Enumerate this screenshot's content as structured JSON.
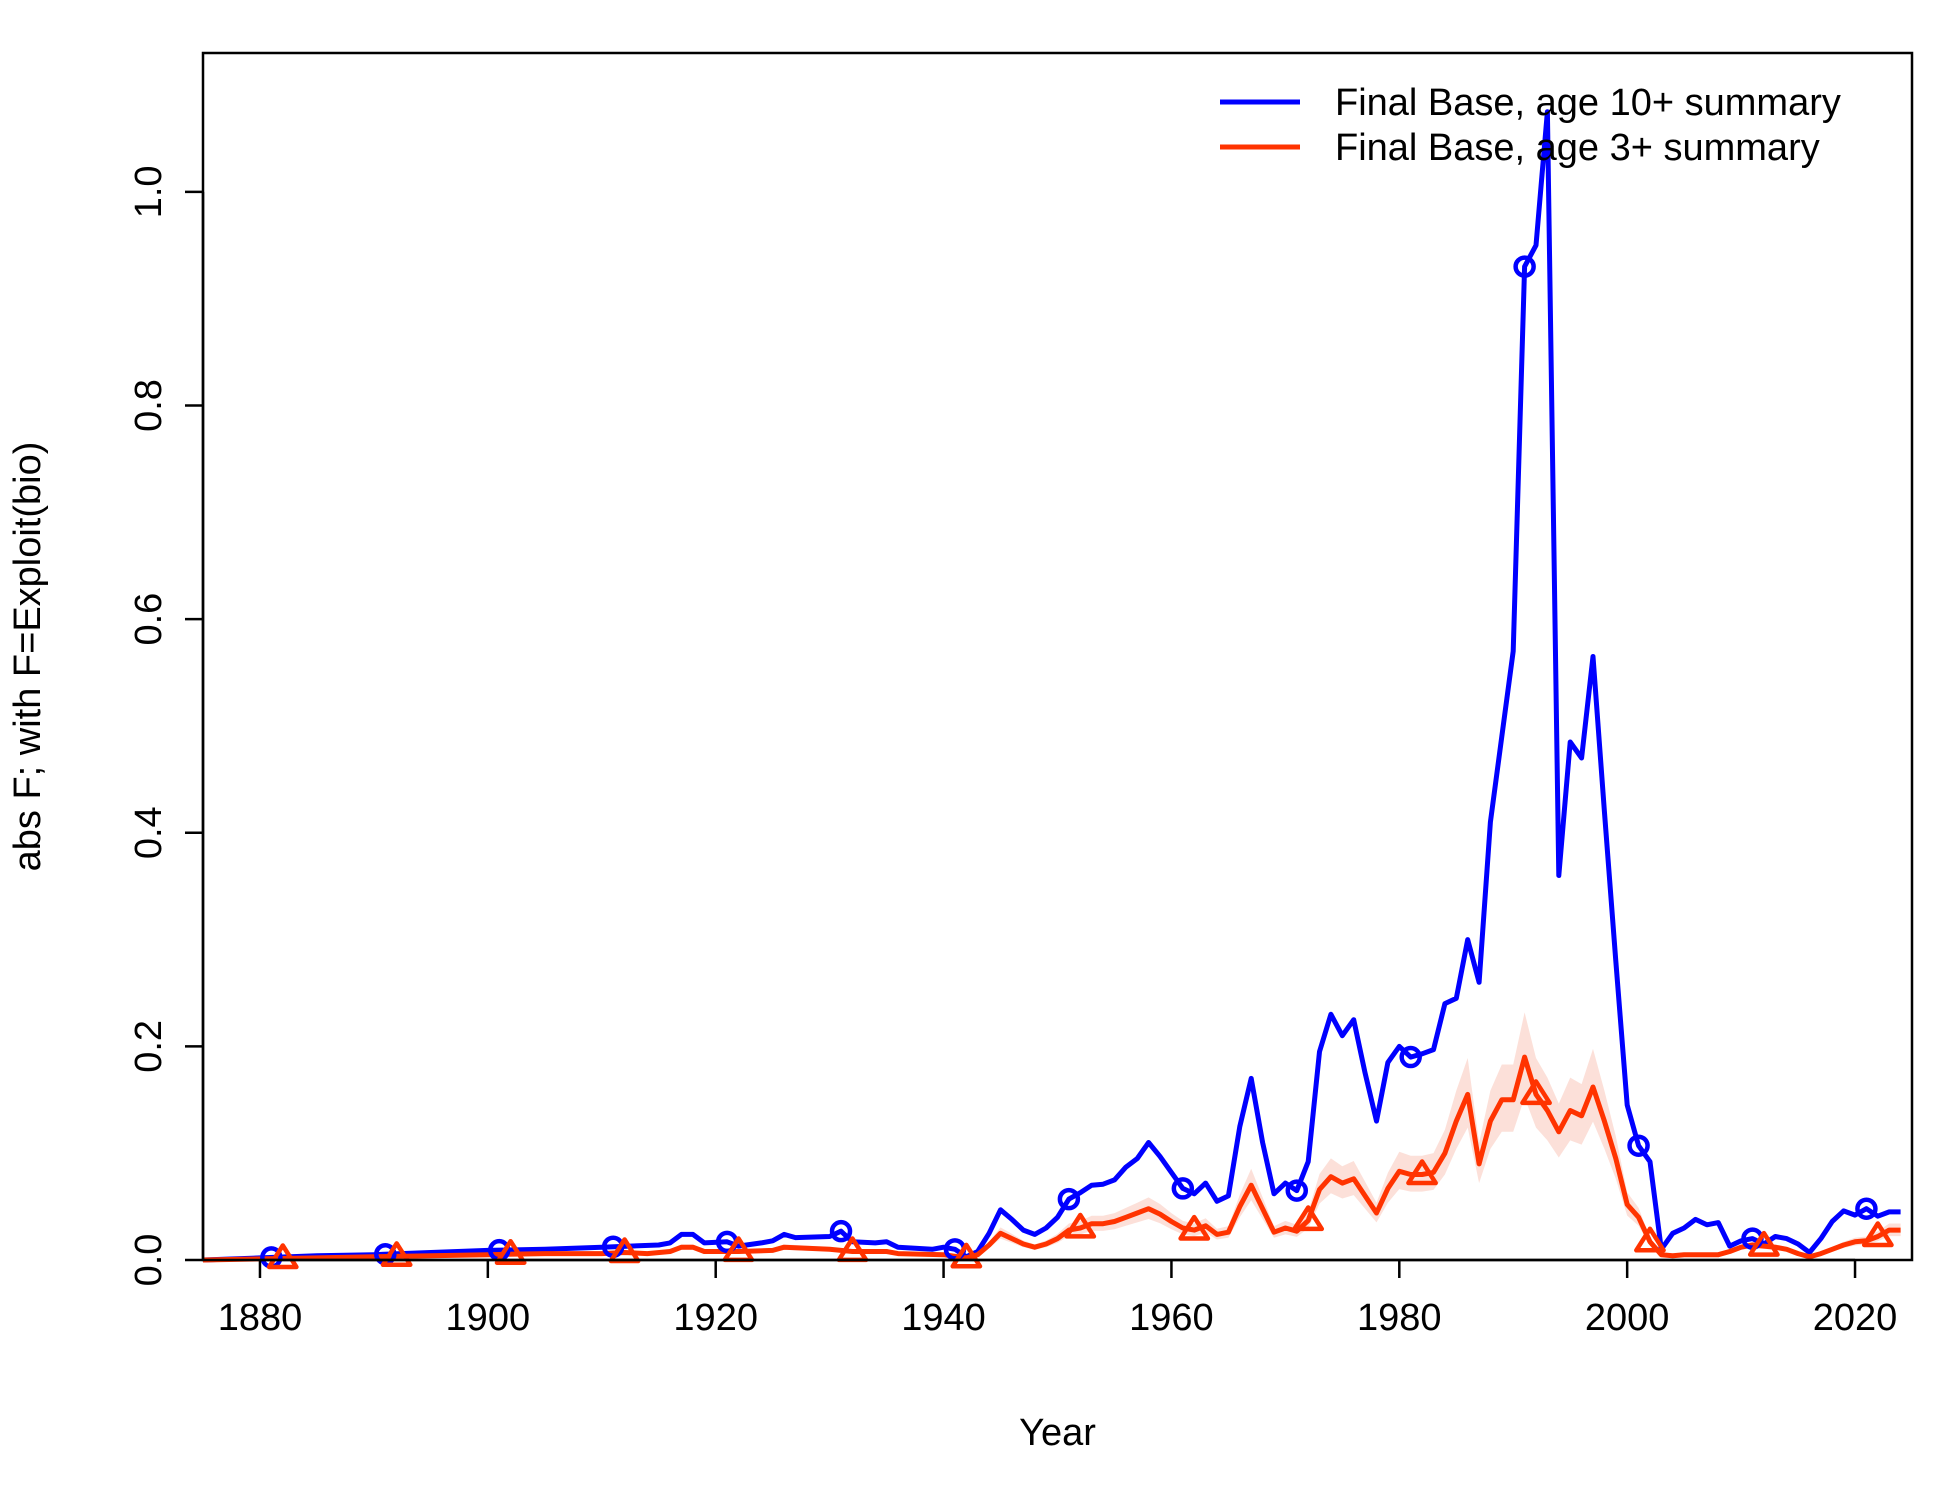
{
  "chart_data": {
    "type": "line",
    "xlabel": "Year",
    "ylabel": "abs F; with F=Exploit(bio)",
    "xlim": [
      1875,
      2025
    ],
    "ylim": [
      0,
      1.13
    ],
    "x_ticks": [
      1880,
      1900,
      1920,
      1940,
      1960,
      1980,
      2000,
      2020
    ],
    "y_ticks": [
      "0.0",
      "0.2",
      "0.4",
      "0.6",
      "0.8",
      "1.0"
    ],
    "legend": {
      "placement": "top-right",
      "entries": [
        "Final Base, age 10+ summary",
        "Final Base, age 3+ summary"
      ]
    },
    "colors": {
      "series1": "#0000ff",
      "series2": "#ff3300",
      "band": "#fbd5cc"
    },
    "series": [
      {
        "name": "Final Base, age 10+ summary",
        "marker": "circle",
        "marker_years": [
          1881,
          1891,
          1901,
          1911,
          1921,
          1931,
          1941,
          1951,
          1961,
          1971,
          1981,
          1991,
          2001,
          2011,
          2021
        ],
        "points": [
          [
            1875,
            0.0
          ],
          [
            1880,
            0.002
          ],
          [
            1885,
            0.004
          ],
          [
            1890,
            0.005
          ],
          [
            1895,
            0.007
          ],
          [
            1900,
            0.009
          ],
          [
            1905,
            0.01
          ],
          [
            1910,
            0.012
          ],
          [
            1915,
            0.014
          ],
          [
            1916,
            0.016
          ],
          [
            1917,
            0.024
          ],
          [
            1918,
            0.024
          ],
          [
            1919,
            0.016
          ],
          [
            1921,
            0.017
          ],
          [
            1922,
            0.013
          ],
          [
            1924,
            0.016
          ],
          [
            1925,
            0.018
          ],
          [
            1926,
            0.024
          ],
          [
            1927,
            0.021
          ],
          [
            1930,
            0.022
          ],
          [
            1931,
            0.027
          ],
          [
            1932,
            0.017
          ],
          [
            1934,
            0.016
          ],
          [
            1935,
            0.017
          ],
          [
            1936,
            0.012
          ],
          [
            1939,
            0.01
          ],
          [
            1940,
            0.012
          ],
          [
            1941,
            0.01
          ],
          [
            1942,
            0.003
          ],
          [
            1943,
            0.008
          ],
          [
            1944,
            0.025
          ],
          [
            1945,
            0.047
          ],
          [
            1946,
            0.038
          ],
          [
            1947,
            0.028
          ],
          [
            1948,
            0.024
          ],
          [
            1949,
            0.03
          ],
          [
            1950,
            0.04
          ],
          [
            1951,
            0.057
          ],
          [
            1952,
            0.063
          ],
          [
            1953,
            0.07
          ],
          [
            1954,
            0.071
          ],
          [
            1955,
            0.075
          ],
          [
            1956,
            0.087
          ],
          [
            1957,
            0.095
          ],
          [
            1958,
            0.11
          ],
          [
            1959,
            0.097
          ],
          [
            1960,
            0.082
          ],
          [
            1961,
            0.067
          ],
          [
            1962,
            0.062
          ],
          [
            1963,
            0.072
          ],
          [
            1964,
            0.055
          ],
          [
            1965,
            0.06
          ],
          [
            1966,
            0.125
          ],
          [
            1967,
            0.17
          ],
          [
            1968,
            0.11
          ],
          [
            1969,
            0.062
          ],
          [
            1970,
            0.072
          ],
          [
            1971,
            0.065
          ],
          [
            1972,
            0.092
          ],
          [
            1973,
            0.195
          ],
          [
            1974,
            0.23
          ],
          [
            1975,
            0.21
          ],
          [
            1976,
            0.225
          ],
          [
            1977,
            0.175
          ],
          [
            1978,
            0.13
          ],
          [
            1979,
            0.185
          ],
          [
            1980,
            0.2
          ],
          [
            1981,
            0.19
          ],
          [
            1982,
            0.193
          ],
          [
            1983,
            0.197
          ],
          [
            1984,
            0.24
          ],
          [
            1985,
            0.245
          ],
          [
            1986,
            0.3
          ],
          [
            1987,
            0.26
          ],
          [
            1988,
            0.41
          ],
          [
            1989,
            0.49
          ],
          [
            1990,
            0.57
          ],
          [
            1991,
            0.93
          ],
          [
            1992,
            0.95
          ],
          [
            1993,
            1.075
          ],
          [
            1994,
            0.36
          ],
          [
            1995,
            0.485
          ],
          [
            1996,
            0.47
          ],
          [
            1997,
            0.565
          ],
          [
            1998,
            0.42
          ],
          [
            1999,
            0.28
          ],
          [
            2000,
            0.145
          ],
          [
            2001,
            0.107
          ],
          [
            2002,
            0.092
          ],
          [
            2003,
            0.01
          ],
          [
            2004,
            0.025
          ],
          [
            2005,
            0.03
          ],
          [
            2006,
            0.038
          ],
          [
            2007,
            0.033
          ],
          [
            2008,
            0.035
          ],
          [
            2009,
            0.013
          ],
          [
            2010,
            0.018
          ],
          [
            2011,
            0.02
          ],
          [
            2012,
            0.015
          ],
          [
            2013,
            0.022
          ],
          [
            2014,
            0.02
          ],
          [
            2015,
            0.015
          ],
          [
            2016,
            0.007
          ],
          [
            2017,
            0.02
          ],
          [
            2018,
            0.036
          ],
          [
            2019,
            0.046
          ],
          [
            2020,
            0.042
          ],
          [
            2021,
            0.048
          ],
          [
            2022,
            0.041
          ],
          [
            2023,
            0.045
          ],
          [
            2024,
            0.045
          ]
        ]
      },
      {
        "name": "Final Base, age 3+ summary",
        "marker": "triangle",
        "marker_years": [
          1882,
          1892,
          1902,
          1912,
          1922,
          1932,
          1942,
          1952,
          1962,
          1972,
          1982,
          1992,
          2002,
          2012,
          2022
        ],
        "points": [
          [
            1875,
            0.0
          ],
          [
            1880,
            0.001
          ],
          [
            1885,
            0.002
          ],
          [
            1890,
            0.003
          ],
          [
            1895,
            0.004
          ],
          [
            1900,
            0.005
          ],
          [
            1905,
            0.006
          ],
          [
            1910,
            0.006
          ],
          [
            1912,
            0.007
          ],
          [
            1914,
            0.006
          ],
          [
            1916,
            0.008
          ],
          [
            1917,
            0.012
          ],
          [
            1918,
            0.012
          ],
          [
            1919,
            0.008
          ],
          [
            1922,
            0.008
          ],
          [
            1925,
            0.009
          ],
          [
            1926,
            0.012
          ],
          [
            1930,
            0.01
          ],
          [
            1932,
            0.008
          ],
          [
            1935,
            0.008
          ],
          [
            1936,
            0.006
          ],
          [
            1940,
            0.005
          ],
          [
            1942,
            0.002
          ],
          [
            1943,
            0.005
          ],
          [
            1944,
            0.014
          ],
          [
            1945,
            0.025
          ],
          [
            1946,
            0.02
          ],
          [
            1947,
            0.015
          ],
          [
            1948,
            0.012
          ],
          [
            1949,
            0.015
          ],
          [
            1950,
            0.02
          ],
          [
            1951,
            0.028
          ],
          [
            1952,
            0.03
          ],
          [
            1953,
            0.034
          ],
          [
            1954,
            0.034
          ],
          [
            1955,
            0.036
          ],
          [
            1956,
            0.04
          ],
          [
            1957,
            0.044
          ],
          [
            1958,
            0.048
          ],
          [
            1959,
            0.043
          ],
          [
            1960,
            0.036
          ],
          [
            1961,
            0.03
          ],
          [
            1962,
            0.028
          ],
          [
            1963,
            0.032
          ],
          [
            1964,
            0.024
          ],
          [
            1965,
            0.026
          ],
          [
            1966,
            0.05
          ],
          [
            1967,
            0.07
          ],
          [
            1968,
            0.048
          ],
          [
            1969,
            0.026
          ],
          [
            1970,
            0.03
          ],
          [
            1971,
            0.027
          ],
          [
            1972,
            0.037
          ],
          [
            1973,
            0.066
          ],
          [
            1974,
            0.078
          ],
          [
            1975,
            0.072
          ],
          [
            1976,
            0.076
          ],
          [
            1977,
            0.06
          ],
          [
            1978,
            0.044
          ],
          [
            1979,
            0.067
          ],
          [
            1980,
            0.083
          ],
          [
            1981,
            0.08
          ],
          [
            1982,
            0.08
          ],
          [
            1983,
            0.082
          ],
          [
            1984,
            0.1
          ],
          [
            1985,
            0.13
          ],
          [
            1986,
            0.155
          ],
          [
            1987,
            0.09
          ],
          [
            1988,
            0.13
          ],
          [
            1989,
            0.15
          ],
          [
            1990,
            0.15
          ],
          [
            1991,
            0.19
          ],
          [
            1992,
            0.155
          ],
          [
            1993,
            0.14
          ],
          [
            1994,
            0.12
          ],
          [
            1995,
            0.14
          ],
          [
            1996,
            0.135
          ],
          [
            1997,
            0.162
          ],
          [
            1998,
            0.13
          ],
          [
            1999,
            0.095
          ],
          [
            2000,
            0.052
          ],
          [
            2001,
            0.04
          ],
          [
            2002,
            0.017
          ],
          [
            2003,
            0.005
          ],
          [
            2004,
            0.004
          ],
          [
            2005,
            0.005
          ],
          [
            2008,
            0.005
          ],
          [
            2009,
            0.008
          ],
          [
            2010,
            0.012
          ],
          [
            2011,
            0.014
          ],
          [
            2012,
            0.013
          ],
          [
            2013,
            0.012
          ],
          [
            2014,
            0.01
          ],
          [
            2015,
            0.006
          ],
          [
            2016,
            0.003
          ],
          [
            2017,
            0.006
          ],
          [
            2018,
            0.01
          ],
          [
            2019,
            0.014
          ],
          [
            2020,
            0.017
          ],
          [
            2021,
            0.018
          ],
          [
            2022,
            0.022
          ],
          [
            2023,
            0.028
          ],
          [
            2024,
            0.028
          ]
        ]
      }
    ]
  }
}
